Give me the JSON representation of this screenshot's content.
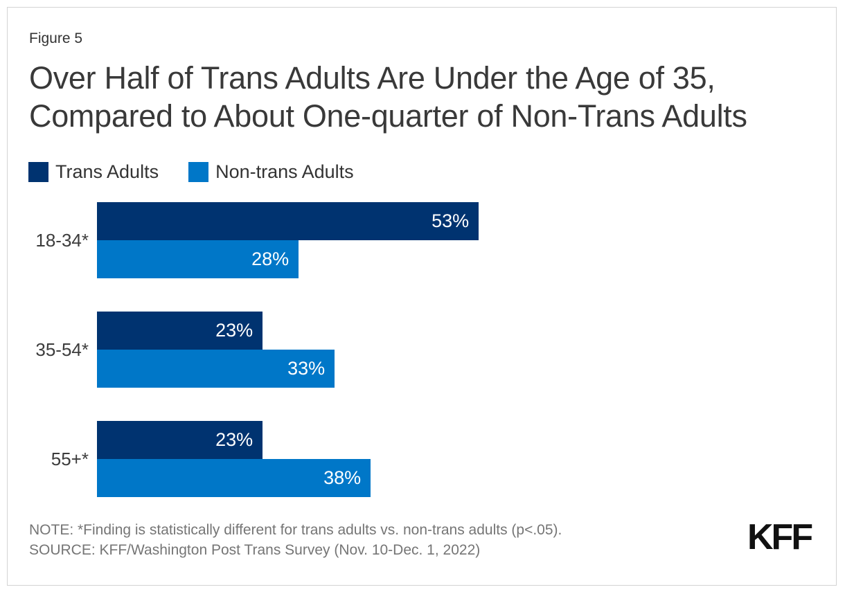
{
  "figure_label": "Figure 5",
  "title_lines": [
    "Over Half of Trans Adults Are Under the Age of 35,",
    "Compared to About One-quarter of Non-Trans Adults"
  ],
  "note": "NOTE: *Finding is statistically different for trans adults vs. non-trans adults (p<.05).",
  "source": "SOURCE: KFF/Washington Post Trans Survey (Nov. 10-Dec. 1, 2022)",
  "logo_text": "KFF",
  "colors": {
    "trans_adults": "#003370",
    "non_trans_adults": "#0077C8",
    "title_text": "#393939",
    "note_text": "#757575",
    "bar_value_text": "#ffffff"
  },
  "chart_data": {
    "type": "bar",
    "orientation": "horizontal",
    "title": "Over Half of Trans Adults Are Under the Age of 35, Compared to About One-quarter of Non-Trans Adults",
    "categories": [
      "18-34*",
      "35-54*",
      "55+*"
    ],
    "series": [
      {
        "name": "Trans Adults",
        "color": "#003370",
        "values": [
          53,
          23,
          23
        ]
      },
      {
        "name": "Non-trans Adults",
        "color": "#0077C8",
        "values": [
          28,
          33,
          38
        ]
      }
    ],
    "value_suffix": "%",
    "xlim": [
      0,
      100
    ],
    "xlabel": "",
    "ylabel": "",
    "grid": false,
    "legend_position": "top",
    "value_labels": "inside-end"
  }
}
